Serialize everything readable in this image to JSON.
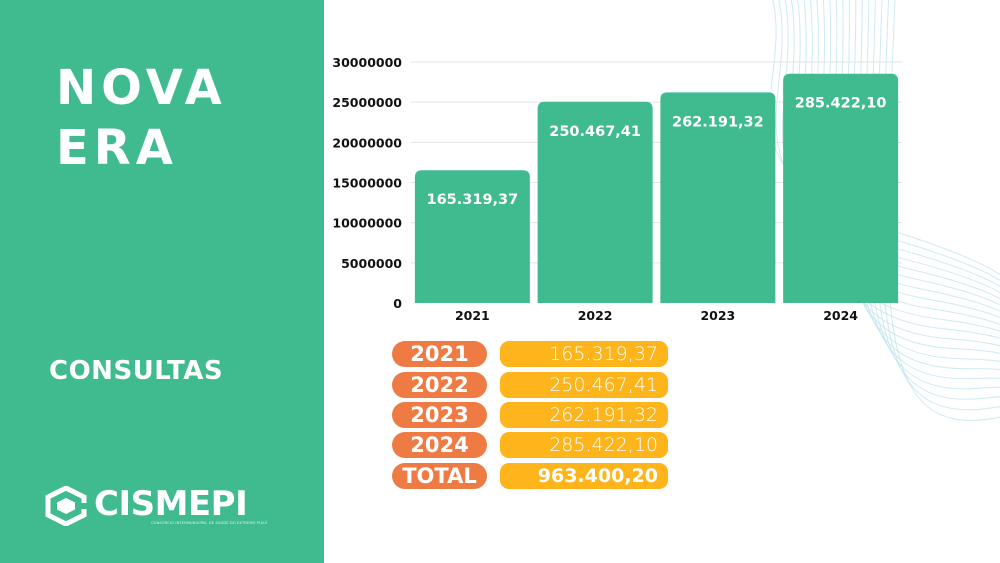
{
  "title": {
    "line1": "NOVA",
    "line2": "ERA"
  },
  "subtitle": "CONSULTAS",
  "logo": {
    "name": "CISMEPI",
    "tagline": "CONSÓRCIO INTERMUNICIPAL DE SAÚDE DO EXTREMO PIAUÍ"
  },
  "colors": {
    "panel": "#3fbb8f",
    "bar": "#3fbb8f",
    "year_badge": "#ee7b43",
    "value_badge": "#fdb51b",
    "decor_lines": "#bfe3ee"
  },
  "chart_data": {
    "type": "bar",
    "categories": [
      "2021",
      "2022",
      "2023",
      "2024"
    ],
    "values": [
      16531937,
      25046741,
      26219132,
      28542210
    ],
    "data_labels": [
      "165.319,37",
      "250.467,41",
      "262.191,32",
      "285.422,10"
    ],
    "yticks": [
      "0",
      "5000000",
      "10000000",
      "15000000",
      "20000000",
      "25000000",
      "30000000"
    ],
    "ylim": [
      0,
      30000000
    ],
    "title": "",
    "xlabel": "",
    "ylabel": "",
    "grid": true
  },
  "table": {
    "rows": [
      {
        "year": "2021",
        "value": "165.319,37"
      },
      {
        "year": "2022",
        "value": "250.467,41"
      },
      {
        "year": "2023",
        "value": "262.191,32"
      },
      {
        "year": "2024",
        "value": "285.422,10"
      }
    ],
    "total_label": "TOTAL",
    "total_value": "963.400,20"
  }
}
